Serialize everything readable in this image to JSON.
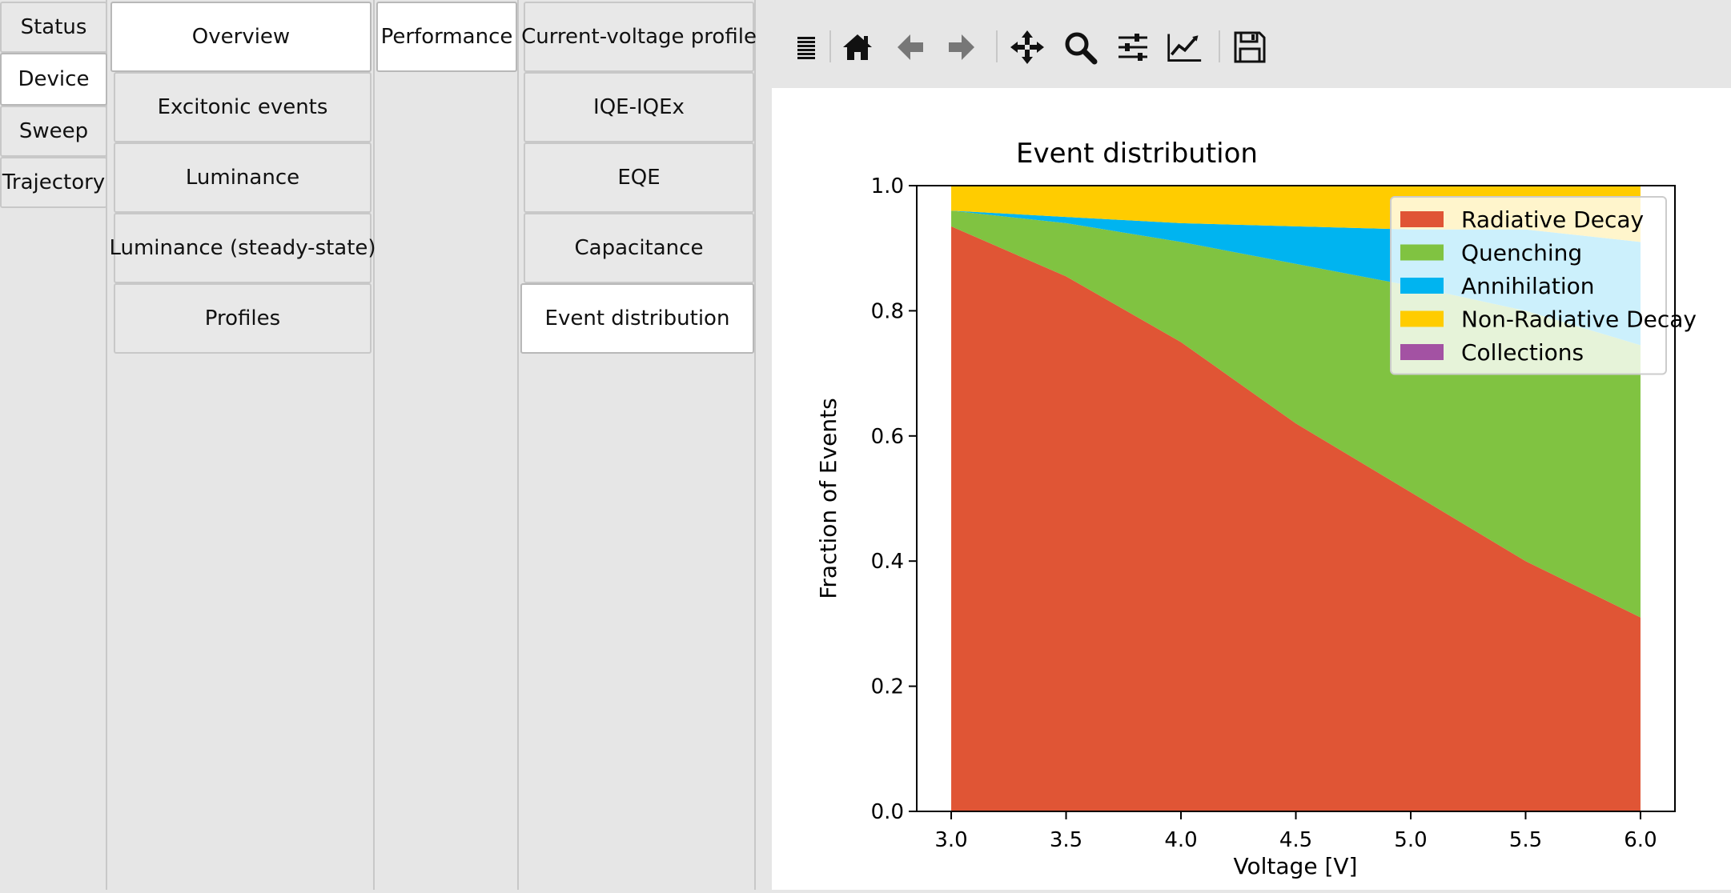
{
  "tabs_level1": [
    "Status",
    "Device",
    "Sweep",
    "Trajectory"
  ],
  "tabs_level2": [
    "Overview",
    "Excitonic events",
    "Luminance",
    "Luminance (steady-state)",
    "Profiles"
  ],
  "tabs_level3": [
    "Performance"
  ],
  "tabs_level4": [
    "Current-voltage profile",
    "IQE-IQEx",
    "EQE",
    "Capacitance",
    "Event distribution"
  ],
  "active_tabs": {
    "level1": "Device",
    "level2": "Overview",
    "level3": "Performance",
    "level4": "Event distribution"
  },
  "toolbar": {
    "buttons": [
      "menu-icon",
      "home-icon",
      "back-icon",
      "forward-icon",
      "pan-icon",
      "zoom-icon",
      "configure-subplots-icon",
      "edit-axis-icon",
      "save-icon"
    ]
  },
  "chart_data": {
    "type": "area",
    "stacked": true,
    "title": "Event distribution",
    "xlabel": "Voltage [V]",
    "ylabel": "Fraction of Events",
    "x": [
      3.0,
      3.5,
      4.0,
      4.5,
      5.0,
      5.5,
      6.0
    ],
    "xticks": [
      "3.0",
      "3.5",
      "4.0",
      "4.5",
      "5.0",
      "5.5",
      "6.0"
    ],
    "yticks": [
      "0.0",
      "0.2",
      "0.4",
      "0.6",
      "0.8",
      "1.0"
    ],
    "xlim": [
      2.85,
      6.15
    ],
    "ylim": [
      0,
      1
    ],
    "grid": false,
    "legend_position": "top-right",
    "series": [
      {
        "name": "Radiative Decay",
        "color": "#e05535",
        "values": [
          0.935,
          0.855,
          0.75,
          0.62,
          0.51,
          0.4,
          0.31
        ]
      },
      {
        "name": "Quenching",
        "color": "#80c341",
        "values": [
          0.025,
          0.085,
          0.16,
          0.255,
          0.33,
          0.4,
          0.435
        ]
      },
      {
        "name": "Annihilation",
        "color": "#00b4f0",
        "values": [
          0.0,
          0.01,
          0.03,
          0.06,
          0.09,
          0.13,
          0.165
        ]
      },
      {
        "name": "Non-Radiative Decay",
        "color": "#ffcc00",
        "values": [
          0.04,
          0.05,
          0.06,
          0.065,
          0.07,
          0.07,
          0.09
        ]
      },
      {
        "name": "Collections",
        "color": "#a352a3",
        "values": [
          0,
          0,
          0,
          0,
          0,
          0,
          0
        ]
      }
    ]
  }
}
